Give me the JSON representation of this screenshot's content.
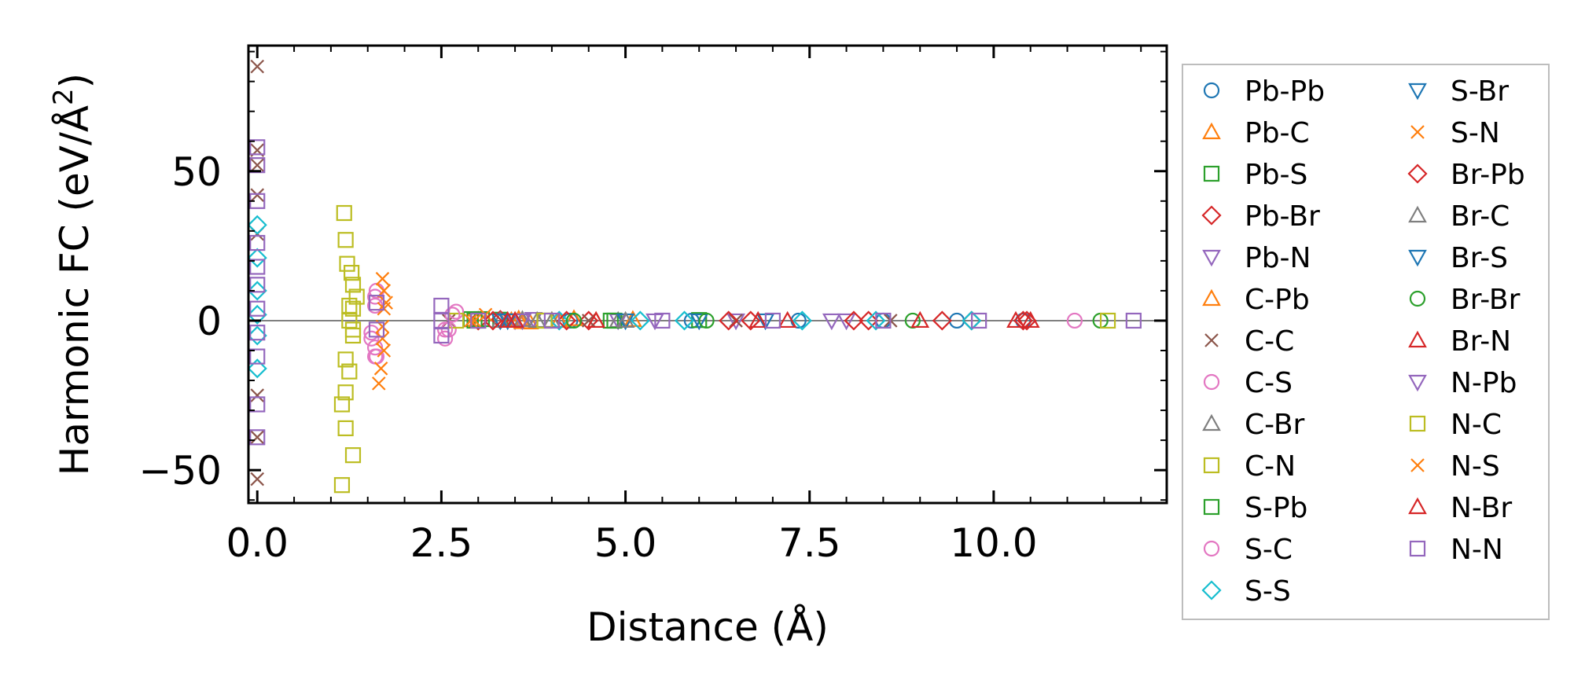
{
  "chart_data": {
    "type": "scatter",
    "xlabel": "Distance (Å)",
    "ylabel_main": "Harmonic FC (eV/Å",
    "ylabel_sup": "2",
    "ylabel_close": ")",
    "xlim": [
      -0.12,
      12.35
    ],
    "ylim": [
      -61,
      92
    ],
    "xticks": [
      0.0,
      2.5,
      5.0,
      7.5,
      10.0
    ],
    "xtick_labels": [
      "0.0",
      "2.5",
      "5.0",
      "7.5",
      "10.0"
    ],
    "yticks": [
      -50,
      0,
      50
    ],
    "ytick_labels": [
      "−50",
      "0",
      "50"
    ],
    "zero_line": 0,
    "legend_position": "outside-right",
    "series": [
      {
        "name": "Pb-Pb",
        "marker": "circle",
        "color": "#1f77b4",
        "points": [
          [
            4.25,
            0
          ],
          [
            5.9,
            0
          ],
          [
            7.35,
            0
          ],
          [
            8.5,
            0
          ],
          [
            9.5,
            0
          ],
          [
            10.4,
            0
          ]
        ]
      },
      {
        "name": "Pb-C",
        "marker": "triangle-up",
        "color": "#ff7f0e",
        "points": [
          [
            3.45,
            0
          ],
          [
            3.55,
            0.5
          ],
          [
            3.7,
            -0.5
          ],
          [
            4.0,
            0
          ],
          [
            4.3,
            0.6
          ],
          [
            4.6,
            0
          ]
        ]
      },
      {
        "name": "Pb-S",
        "marker": "square",
        "color": "#2ca02c",
        "points": [
          [
            2.9,
            0.5
          ],
          [
            3.0,
            0
          ],
          [
            3.3,
            0.3
          ],
          [
            4.8,
            0
          ],
          [
            6.0,
            0.2
          ]
        ]
      },
      {
        "name": "Pb-Br",
        "marker": "diamond",
        "color": "#d62728",
        "points": [
          [
            3.0,
            0
          ],
          [
            3.3,
            0.3
          ],
          [
            4.5,
            0
          ],
          [
            6.7,
            0
          ],
          [
            8.3,
            0
          ],
          [
            9.7,
            0
          ],
          [
            10.4,
            0
          ]
        ]
      },
      {
        "name": "Pb-N",
        "marker": "triangle-down",
        "color": "#9467bd",
        "points": [
          [
            3.5,
            0
          ],
          [
            3.75,
            0.5
          ],
          [
            4.9,
            0
          ],
          [
            6.5,
            0
          ],
          [
            8.0,
            0
          ]
        ]
      },
      {
        "name": "C-Pb",
        "marker": "triangle-up",
        "color": "#ff7f0e",
        "points": [
          [
            3.5,
            0
          ],
          [
            3.6,
            -0.4
          ],
          [
            4.1,
            0
          ],
          [
            5.1,
            0.3
          ]
        ]
      },
      {
        "name": "C-C",
        "marker": "x",
        "color": "#8c564b",
        "points": [
          [
            0,
            85
          ],
          [
            0,
            57
          ],
          [
            0,
            52
          ],
          [
            0,
            42
          ],
          [
            0,
            29
          ],
          [
            0,
            -25
          ],
          [
            0,
            -39
          ],
          [
            0,
            -53
          ],
          [
            2.6,
            0
          ],
          [
            4.5,
            0
          ],
          [
            6.5,
            0
          ],
          [
            8.6,
            0
          ]
        ]
      },
      {
        "name": "C-S",
        "marker": "circle",
        "color": "#e377c2",
        "points": [
          [
            1.62,
            -12
          ],
          [
            1.6,
            -9
          ],
          [
            1.55,
            -6
          ],
          [
            1.6,
            5
          ],
          [
            1.62,
            10
          ],
          [
            2.55,
            -6
          ],
          [
            2.6,
            -3
          ],
          [
            2.7,
            3
          ]
        ]
      },
      {
        "name": "C-Br",
        "marker": "triangle-up",
        "color": "#7f7f7f",
        "points": [
          [
            3.3,
            0
          ],
          [
            3.6,
            0.3
          ],
          [
            4.0,
            0
          ],
          [
            4.9,
            0
          ]
        ]
      },
      {
        "name": "C-N",
        "marker": "square",
        "color": "#bcbd22",
        "points": [
          [
            1.18,
            36
          ],
          [
            1.2,
            27
          ],
          [
            1.22,
            19
          ],
          [
            1.28,
            16
          ],
          [
            1.3,
            12
          ],
          [
            1.35,
            8
          ],
          [
            1.3,
            4
          ],
          [
            1.25,
            0
          ],
          [
            1.3,
            -5
          ],
          [
            1.2,
            -13
          ],
          [
            1.25,
            -17
          ],
          [
            1.2,
            -24
          ],
          [
            1.15,
            -28
          ],
          [
            1.2,
            -36
          ],
          [
            1.3,
            -45
          ],
          [
            1.15,
            -55
          ],
          [
            2.7,
            0
          ],
          [
            3.9,
            0
          ]
        ]
      },
      {
        "name": "S-Pb",
        "marker": "square",
        "color": "#2ca02c",
        "points": [
          [
            2.95,
            0
          ],
          [
            3.05,
            0.5
          ],
          [
            4.85,
            0
          ]
        ]
      },
      {
        "name": "S-C",
        "marker": "circle",
        "color": "#e377c2",
        "points": [
          [
            1.6,
            -12
          ],
          [
            1.55,
            -4
          ],
          [
            1.6,
            8
          ],
          [
            2.55,
            -3
          ],
          [
            2.65,
            2
          ],
          [
            11.1,
            0
          ]
        ]
      },
      {
        "name": "S-S",
        "marker": "diamond",
        "color": "#17becf",
        "points": [
          [
            0,
            32
          ],
          [
            0,
            21
          ],
          [
            0,
            10
          ],
          [
            0,
            2
          ],
          [
            0,
            -5
          ],
          [
            0,
            -16
          ],
          [
            4.1,
            0
          ],
          [
            5.2,
            0
          ],
          [
            5.8,
            0
          ],
          [
            7.4,
            0
          ],
          [
            8.4,
            0
          ],
          [
            9.7,
            0
          ]
        ]
      },
      {
        "name": "S-Br",
        "marker": "triangle-down",
        "color": "#1f77b4",
        "points": [
          [
            3.3,
            0
          ],
          [
            5.0,
            0
          ],
          [
            6.9,
            0
          ]
        ]
      },
      {
        "name": "S-N",
        "marker": "x",
        "color": "#ff7f0e",
        "points": [
          [
            1.7,
            14
          ],
          [
            1.72,
            10
          ],
          [
            1.75,
            6
          ],
          [
            1.7,
            -2
          ],
          [
            1.72,
            -10
          ],
          [
            1.68,
            -16
          ],
          [
            1.65,
            -21
          ],
          [
            2.9,
            0
          ],
          [
            3.1,
            2
          ]
        ]
      },
      {
        "name": "Br-Pb",
        "marker": "diamond",
        "color": "#d62728",
        "points": [
          [
            3.2,
            0
          ],
          [
            4.2,
            0
          ],
          [
            6.4,
            0
          ],
          [
            8.1,
            0
          ],
          [
            9.3,
            0
          ],
          [
            10.45,
            0
          ]
        ]
      },
      {
        "name": "Br-C",
        "marker": "triangle-up",
        "color": "#7f7f7f",
        "points": [
          [
            3.8,
            0
          ],
          [
            5.0,
            0
          ]
        ]
      },
      {
        "name": "Br-S",
        "marker": "triangle-down",
        "color": "#1f77b4",
        "points": [
          [
            3.4,
            0
          ],
          [
            6.0,
            0
          ]
        ]
      },
      {
        "name": "Br-Br",
        "marker": "circle",
        "color": "#2ca02c",
        "points": [
          [
            4.3,
            0
          ],
          [
            6.1,
            0
          ],
          [
            8.9,
            0
          ],
          [
            11.45,
            0
          ]
        ]
      },
      {
        "name": "Br-N",
        "marker": "triangle-up",
        "color": "#d62728",
        "points": [
          [
            3.4,
            0
          ],
          [
            4.6,
            0
          ],
          [
            7.2,
            0
          ],
          [
            9.0,
            0
          ],
          [
            10.5,
            0
          ]
        ]
      },
      {
        "name": "N-Pb",
        "marker": "triangle-down",
        "color": "#9467bd",
        "points": [
          [
            3.6,
            0
          ],
          [
            5.4,
            0
          ],
          [
            7.8,
            0
          ]
        ]
      },
      {
        "name": "N-C",
        "marker": "square",
        "color": "#bcbd22",
        "points": [
          [
            1.25,
            5
          ],
          [
            1.3,
            -3
          ],
          [
            3.9,
            0
          ],
          [
            11.55,
            0
          ]
        ]
      },
      {
        "name": "N-S",
        "marker": "x",
        "color": "#ff7f0e",
        "points": [
          [
            1.72,
            4
          ],
          [
            1.7,
            -6
          ],
          [
            2.95,
            0
          ]
        ]
      },
      {
        "name": "N-Br",
        "marker": "triangle-up",
        "color": "#d62728",
        "points": [
          [
            3.5,
            0
          ],
          [
            6.8,
            0
          ],
          [
            10.3,
            0
          ]
        ]
      },
      {
        "name": "N-N",
        "marker": "square",
        "color": "#9467bd",
        "points": [
          [
            0,
            58
          ],
          [
            0,
            52
          ],
          [
            0,
            40
          ],
          [
            0,
            26
          ],
          [
            0,
            18
          ],
          [
            0,
            12
          ],
          [
            0,
            4
          ],
          [
            0,
            -4
          ],
          [
            0,
            -12
          ],
          [
            0,
            -28
          ],
          [
            0,
            -39
          ],
          [
            1.62,
            6
          ],
          [
            1.62,
            -3
          ],
          [
            2.5,
            5
          ],
          [
            2.5,
            0
          ],
          [
            2.5,
            -5
          ],
          [
            3.0,
            0
          ],
          [
            4.0,
            0
          ],
          [
            5.5,
            0
          ],
          [
            7.0,
            0
          ],
          [
            8.5,
            0
          ],
          [
            9.8,
            0
          ],
          [
            11.9,
            0
          ]
        ]
      }
    ]
  }
}
